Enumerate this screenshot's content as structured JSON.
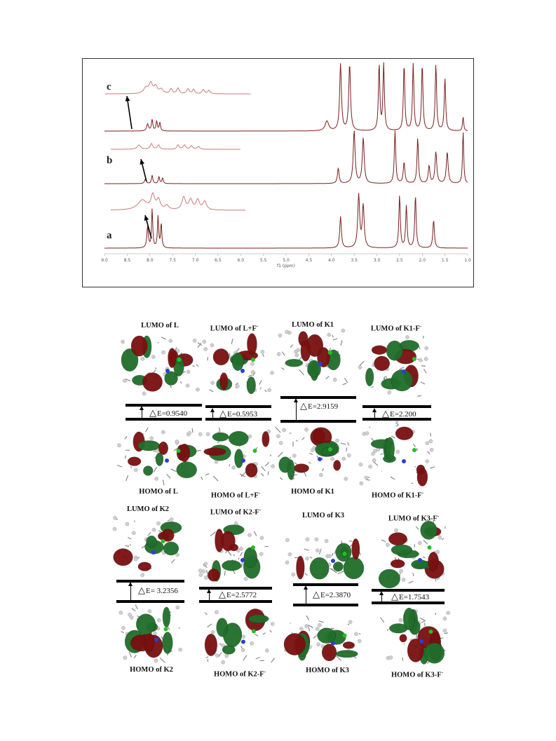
{
  "nmr": {
    "trace_labels": [
      "c",
      "b",
      "a"
    ],
    "x_ticks": [
      "9.0",
      "8.5",
      "8.0",
      "7.5",
      "7.0",
      "6.5",
      "6.0",
      "5.5",
      "5.0",
      "4.5",
      "4.0",
      "3.5",
      "3.0",
      "2.5",
      "2.0",
      "1.5",
      "1.0"
    ],
    "x_axis_title": "f1 (ppm)",
    "line_color": "#7a1f1f",
    "inset_color": "#c97a7a"
  },
  "orbitals": {
    "row1": {
      "lumo": [
        "LUMO of L",
        "LUMO of L+F",
        "LUMO of K1",
        "LUMO of K1-F"
      ],
      "gaps": [
        "E=0.9540",
        "E=0.5953",
        "E=2.9159",
        "E=2.200"
      ],
      "homo": [
        "HOMO of L",
        "HOMO of L+F",
        "HOMO of K1",
        "HOMO of K1-F"
      ]
    },
    "row2": {
      "lumo": [
        "LUMO of K2",
        "LUMO of K2-F",
        "LUMO of K3",
        "LUMO of K3-F"
      ],
      "gaps": [
        "E= 3.2356",
        "E=2.5772",
        "E=2.3870",
        "E=1.7543"
      ],
      "homo": [
        "HOMO of K2",
        "HOMO of K2-F",
        "HOMO of K3",
        "HOMO of K3-F"
      ]
    },
    "anion_sup": "-",
    "stray_digit": "5",
    "delta_symbol": "△",
    "lobe_colors": {
      "positive": "#7a0f0f",
      "negative": "#1f6e2a"
    }
  }
}
